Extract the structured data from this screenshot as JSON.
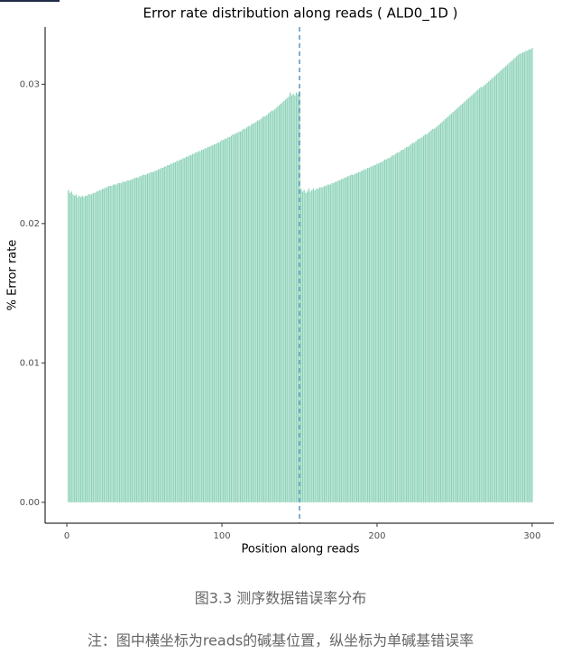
{
  "chart_data": {
    "type": "bar",
    "title": "Error rate distribution along reads ( ALD0_1D )",
    "x_label": "Position along reads",
    "y_label": "% Error rate",
    "color": "#8ed3b9",
    "reference_line": {
      "x": 150,
      "color": "#3a86b4"
    },
    "xlim": [
      -14,
      314
    ],
    "xticks": [
      0,
      100,
      200,
      300
    ],
    "ylim": [
      -0.0015,
      0.0341
    ],
    "yticks": [
      {
        "value": 0,
        "label": "0.00"
      },
      {
        "value": 0.01,
        "label": "0.01"
      },
      {
        "value": 0.02,
        "label": "0.02"
      },
      {
        "value": 0.03,
        "label": "0.03"
      }
    ],
    "x": [
      1,
      2,
      3,
      4,
      5,
      6,
      7,
      8,
      9,
      10,
      11,
      12,
      13,
      14,
      15,
      16,
      17,
      18,
      19,
      20,
      21,
      22,
      23,
      24,
      25,
      26,
      27,
      28,
      29,
      30,
      31,
      32,
      33,
      34,
      35,
      36,
      37,
      38,
      39,
      40,
      41,
      42,
      43,
      44,
      45,
      46,
      47,
      48,
      49,
      50,
      51,
      52,
      53,
      54,
      55,
      56,
      57,
      58,
      59,
      60,
      61,
      62,
      63,
      64,
      65,
      66,
      67,
      68,
      69,
      70,
      71,
      72,
      73,
      74,
      75,
      76,
      77,
      78,
      79,
      80,
      81,
      82,
      83,
      84,
      85,
      86,
      87,
      88,
      89,
      90,
      91,
      92,
      93,
      94,
      95,
      96,
      97,
      98,
      99,
      100,
      101,
      102,
      103,
      104,
      105,
      106,
      107,
      108,
      109,
      110,
      111,
      112,
      113,
      114,
      115,
      116,
      117,
      118,
      119,
      120,
      121,
      122,
      123,
      124,
      125,
      126,
      127,
      128,
      129,
      130,
      131,
      132,
      133,
      134,
      135,
      136,
      137,
      138,
      139,
      140,
      141,
      142,
      143,
      144,
      145,
      146,
      147,
      148,
      149,
      150,
      151,
      152,
      153,
      154,
      155,
      156,
      157,
      158,
      159,
      160,
      161,
      162,
      163,
      164,
      165,
      166,
      167,
      168,
      169,
      170,
      171,
      172,
      173,
      174,
      175,
      176,
      177,
      178,
      179,
      180,
      181,
      182,
      183,
      184,
      185,
      186,
      187,
      188,
      189,
      190,
      191,
      192,
      193,
      194,
      195,
      196,
      197,
      198,
      199,
      200,
      201,
      202,
      203,
      204,
      205,
      206,
      207,
      208,
      209,
      210,
      211,
      212,
      213,
      214,
      215,
      216,
      217,
      218,
      219,
      220,
      221,
      222,
      223,
      224,
      225,
      226,
      227,
      228,
      229,
      230,
      231,
      232,
      233,
      234,
      235,
      236,
      237,
      238,
      239,
      240,
      241,
      242,
      243,
      244,
      245,
      246,
      247,
      248,
      249,
      250,
      251,
      252,
      253,
      254,
      255,
      256,
      257,
      258,
      259,
      260,
      261,
      262,
      263,
      264,
      265,
      266,
      267,
      268,
      269,
      270,
      271,
      272,
      273,
      274,
      275,
      276,
      277,
      278,
      279,
      280,
      281,
      282,
      283,
      284,
      285,
      286,
      287,
      288,
      289,
      290,
      291,
      292,
      293,
      294,
      295,
      296,
      297,
      298,
      299,
      300
    ],
    "values": [
      0.0224,
      0.0222,
      0.0223,
      0.0221,
      0.022,
      0.0221,
      0.0219,
      0.022,
      0.0219,
      0.022,
      0.0219,
      0.022,
      0.022,
      0.0221,
      0.0221,
      0.0221,
      0.0222,
      0.0222,
      0.0223,
      0.0223,
      0.0224,
      0.0224,
      0.0225,
      0.0225,
      0.0226,
      0.0226,
      0.0227,
      0.0227,
      0.0227,
      0.0228,
      0.0228,
      0.0228,
      0.0229,
      0.0229,
      0.0229,
      0.023,
      0.023,
      0.023,
      0.0231,
      0.0231,
      0.0231,
      0.0232,
      0.0232,
      0.0233,
      0.0233,
      0.0233,
      0.0234,
      0.0234,
      0.0235,
      0.0235,
      0.0235,
      0.0236,
      0.0236,
      0.0237,
      0.0237,
      0.0237,
      0.0238,
      0.0238,
      0.0239,
      0.0239,
      0.024,
      0.024,
      0.0241,
      0.0241,
      0.0242,
      0.0242,
      0.0243,
      0.0243,
      0.0244,
      0.0244,
      0.0245,
      0.0245,
      0.0246,
      0.0246,
      0.0247,
      0.0247,
      0.0248,
      0.0248,
      0.0249,
      0.0249,
      0.025,
      0.025,
      0.0251,
      0.0251,
      0.0252,
      0.0252,
      0.0253,
      0.0253,
      0.0254,
      0.0254,
      0.0255,
      0.0255,
      0.0256,
      0.0256,
      0.0257,
      0.0257,
      0.0258,
      0.0258,
      0.0259,
      0.026,
      0.026,
      0.0261,
      0.0261,
      0.0262,
      0.0262,
      0.0263,
      0.0264,
      0.0264,
      0.0265,
      0.0265,
      0.0266,
      0.0266,
      0.0267,
      0.0268,
      0.0268,
      0.0269,
      0.027,
      0.027,
      0.0271,
      0.0272,
      0.0272,
      0.0273,
      0.0274,
      0.0274,
      0.0275,
      0.0276,
      0.0277,
      0.0277,
      0.0278,
      0.0279,
      0.028,
      0.0281,
      0.0281,
      0.0282,
      0.0283,
      0.0284,
      0.0285,
      0.0286,
      0.0287,
      0.0288,
      0.0289,
      0.029,
      0.0291,
      0.0294,
      0.0292,
      0.0293,
      0.0292,
      0.0294,
      0.0293,
      0.0295,
      0.0225,
      0.0223,
      0.0224,
      0.0222,
      0.0223,
      0.0225,
      0.0223,
      0.0224,
      0.0225,
      0.0224,
      0.0225,
      0.0225,
      0.0226,
      0.0226,
      0.0226,
      0.0227,
      0.0227,
      0.0228,
      0.0228,
      0.0228,
      0.0229,
      0.0229,
      0.023,
      0.023,
      0.0231,
      0.0231,
      0.0232,
      0.0232,
      0.0233,
      0.0233,
      0.0234,
      0.0234,
      0.0235,
      0.0235,
      0.0235,
      0.0236,
      0.0236,
      0.0237,
      0.0237,
      0.0238,
      0.0238,
      0.0239,
      0.0239,
      0.024,
      0.024,
      0.0241,
      0.0241,
      0.0242,
      0.0242,
      0.0243,
      0.0243,
      0.0244,
      0.0244,
      0.0245,
      0.0246,
      0.0246,
      0.0247,
      0.0247,
      0.0248,
      0.0249,
      0.0249,
      0.025,
      0.0251,
      0.0251,
      0.0252,
      0.0253,
      0.0253,
      0.0254,
      0.0255,
      0.0255,
      0.0256,
      0.0257,
      0.0258,
      0.0258,
      0.0259,
      0.026,
      0.0261,
      0.0261,
      0.0262,
      0.0263,
      0.0264,
      0.0264,
      0.0265,
      0.0266,
      0.0267,
      0.0268,
      0.0268,
      0.0269,
      0.027,
      0.0271,
      0.0272,
      0.0273,
      0.0274,
      0.0275,
      0.0276,
      0.0277,
      0.0278,
      0.0279,
      0.028,
      0.0281,
      0.0282,
      0.0283,
      0.0284,
      0.0285,
      0.0286,
      0.0287,
      0.0288,
      0.0289,
      0.029,
      0.0291,
      0.0292,
      0.0293,
      0.0294,
      0.0295,
      0.0296,
      0.0297,
      0.0298,
      0.0298,
      0.0299,
      0.03,
      0.0301,
      0.0302,
      0.0303,
      0.0304,
      0.0305,
      0.0306,
      0.0307,
      0.0308,
      0.0309,
      0.031,
      0.0311,
      0.0312,
      0.0313,
      0.0314,
      0.0315,
      0.0316,
      0.0317,
      0.0318,
      0.0319,
      0.032,
      0.0321,
      0.0322,
      0.0322,
      0.0323,
      0.0323,
      0.0324,
      0.0324,
      0.0325,
      0.0325,
      0.0326
    ]
  },
  "caption": {
    "figure": "图3.3 测序数据错误率分布",
    "note": "注：图中横坐标为reads的碱基位置，纵坐标为单碱基错误率"
  }
}
